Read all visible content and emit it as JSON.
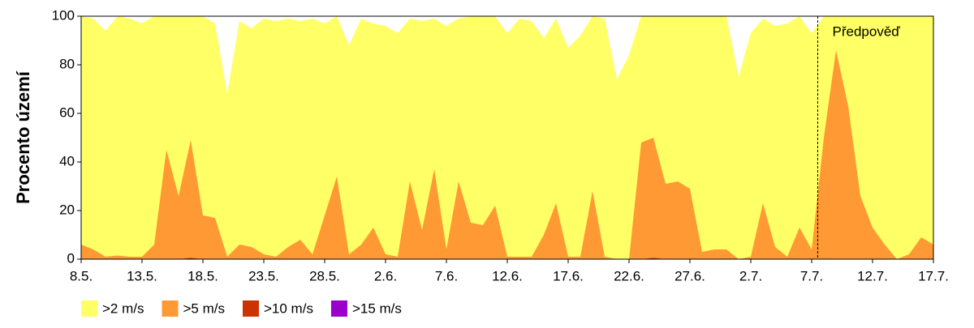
{
  "chart_data": {
    "type": "area",
    "y_label": "Procento území",
    "categories": [
      "8.5.",
      null,
      null,
      null,
      null,
      "13.5.",
      null,
      null,
      null,
      null,
      "18.5.",
      null,
      null,
      null,
      null,
      "23.5.",
      null,
      null,
      null,
      null,
      "28.5.",
      null,
      null,
      null,
      null,
      "2.6.",
      null,
      null,
      null,
      null,
      "7.6.",
      null,
      null,
      null,
      null,
      "12.6.",
      null,
      null,
      null,
      null,
      "17.6.",
      null,
      null,
      null,
      null,
      "22.6.",
      null,
      null,
      null,
      null,
      "27.6.",
      null,
      null,
      null,
      null,
      "2.7.",
      null,
      null,
      null,
      null,
      "7.7.",
      null,
      null,
      null,
      null,
      "12.7.",
      null,
      null,
      null,
      null,
      "17.7."
    ],
    "series": [
      {
        "name": ">2 m/s",
        "color": "#ffff66",
        "values": [
          100,
          99,
          94,
          100,
          99,
          97,
          100,
          100,
          100,
          100,
          100,
          97,
          68,
          98,
          95,
          99,
          98,
          99,
          98,
          99,
          97,
          100,
          88,
          99,
          97,
          96,
          93,
          99,
          98,
          99,
          96,
          99,
          100,
          100,
          100,
          93,
          99,
          98,
          91,
          99,
          87,
          92,
          100,
          99,
          74,
          84,
          100,
          100,
          100,
          100,
          100,
          100,
          100,
          100,
          75,
          93,
          99,
          96,
          97,
          100,
          93,
          100,
          100,
          100,
          100,
          100,
          100,
          100,
          100,
          100,
          100
        ]
      },
      {
        "name": ">5 m/s",
        "color": "#ff9933",
        "values": [
          6,
          4,
          1,
          1.5,
          1,
          1,
          6,
          45,
          26,
          49,
          18,
          17,
          1,
          6,
          5,
          2,
          1,
          5,
          8,
          2,
          18,
          34,
          2,
          6,
          13,
          2,
          1,
          32,
          12,
          37,
          4,
          32,
          15,
          14,
          22,
          1,
          1,
          1,
          10,
          23,
          1,
          1,
          28,
          1,
          0,
          0,
          48,
          50,
          31,
          32,
          29,
          3,
          4,
          4,
          0,
          1,
          23,
          5,
          1,
          13,
          4,
          50,
          86,
          63,
          26,
          13,
          6,
          0,
          2,
          9,
          6
        ]
      },
      {
        "name": ">10 m/s",
        "color": "#cc3300",
        "values": [
          0,
          0,
          0,
          0,
          0,
          0,
          0,
          0,
          0,
          0.5,
          0,
          0,
          0,
          0,
          0,
          0,
          0,
          0,
          0,
          0,
          0,
          0,
          0,
          0,
          0,
          0,
          0,
          0,
          0,
          0,
          0,
          0,
          0,
          0,
          0,
          0,
          0,
          0,
          0,
          0,
          0,
          0,
          0,
          0,
          0,
          0,
          0,
          0.5,
          0,
          0,
          0,
          0,
          0,
          0,
          0,
          0,
          0,
          0,
          0,
          0,
          0,
          0,
          0,
          0,
          0,
          0,
          0,
          0,
          0,
          0,
          0
        ]
      },
      {
        "name": ">15 m/s",
        "color": "#9900cc",
        "values": [
          0,
          0,
          0,
          0,
          0,
          0,
          0,
          0,
          0,
          0,
          0,
          0,
          0,
          0,
          0,
          0,
          0,
          0,
          0,
          0,
          0,
          0,
          0,
          0,
          0,
          0,
          0,
          0,
          0,
          0,
          0,
          0,
          0,
          0,
          0,
          0,
          0,
          0,
          0,
          0,
          0,
          0,
          0,
          0,
          0,
          0,
          0,
          0,
          0,
          0,
          0,
          0,
          0,
          0,
          0,
          0,
          0,
          0,
          0,
          0,
          0,
          0,
          0,
          0,
          0,
          0,
          0,
          0,
          0,
          0,
          0
        ]
      }
    ],
    "ylim": [
      0,
      100
    ],
    "yticks": [
      0,
      20,
      40,
      60,
      80,
      100
    ],
    "annotation": {
      "text": "Předpověď",
      "x": 60.5
    }
  }
}
